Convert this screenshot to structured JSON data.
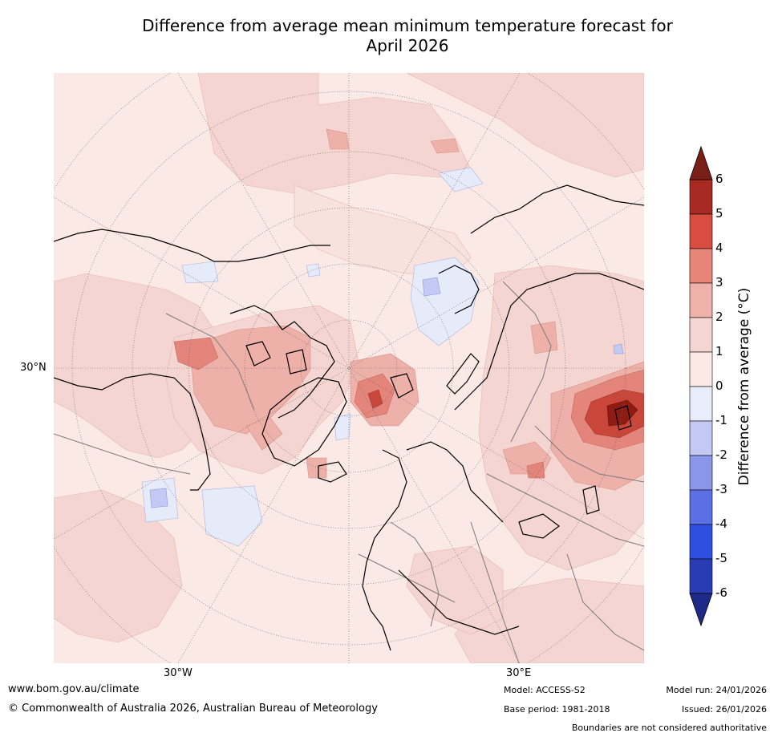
{
  "title_line1": "Difference from average mean minimum temperature forecast for",
  "title_line2": "April 2026",
  "map": {
    "projection": "north-polar-stereographic",
    "lat_label": "30°N",
    "lon_label_west": "30°W",
    "lon_label_east": "30°E",
    "colors": {
      "ocean_anomaly": "#fbe9e6",
      "mild_warm": "#f5d5d1",
      "warm": "#edb1a9",
      "hot": "#e3857b",
      "very_hot": "#c8463a",
      "extreme": "#8e1c14",
      "cool": "#e6ebfa",
      "cooler": "#c3c9f2",
      "coast": "#000000",
      "borders": "#7a7a7a",
      "grid": "#555555"
    }
  },
  "colorbar": {
    "label": "Difference from average ($^\\circ$C)",
    "label_display": "Difference from average (°C)",
    "ticks": [
      "6",
      "5",
      "4",
      "3",
      "2",
      "1",
      "0",
      "-1",
      "-2",
      "-3",
      "-4",
      "-5",
      "-6"
    ],
    "colors_top_to_bottom": [
      "#a82a22",
      "#d94c40",
      "#e8847a",
      "#efb2aa",
      "#f4d5d1",
      "#fbe9e6",
      "#e8ecfb",
      "#c3c9f2",
      "#8a96ea",
      "#5d6fe4",
      "#2f4fe0",
      "#2a3cb4"
    ],
    "over_color": "#7a1f18",
    "under_color": "#1f2a88"
  },
  "footer": {
    "website": "www.bom.gov.au/climate",
    "copyright": "© Commonwealth of Australia 2026, Australian Bureau of Meteorology",
    "model": "Model: ACCESS-S2",
    "base_period": "Base period: 1981-2018",
    "model_run": "Model run: 24/01/2026",
    "issued": "Issued: 26/01/2026",
    "disclaimer": "Boundaries are not considered authoritative"
  }
}
